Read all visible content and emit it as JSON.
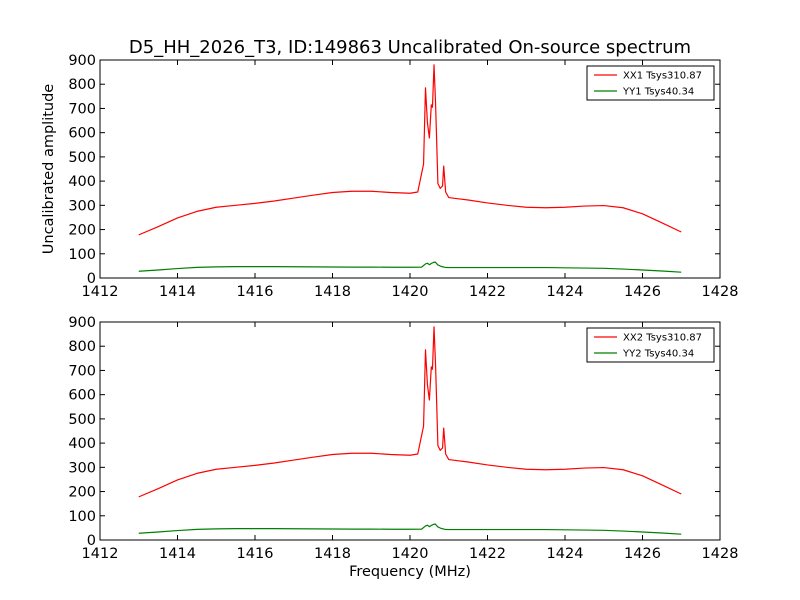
{
  "chart_data": [
    {
      "type": "line",
      "title": "D5_HH_2026_T3, ID:149863 Uncalibrated On-source spectrum",
      "xlabel": "",
      "ylabel": "Uncalibrated amplitude",
      "xlim": [
        1412,
        1428
      ],
      "ylim": [
        0,
        900
      ],
      "xticks": [
        "1412",
        "1414",
        "1416",
        "1418",
        "1420",
        "1422",
        "1424",
        "1426",
        "1428"
      ],
      "yticks": [
        "0",
        "100",
        "200",
        "300",
        "400",
        "500",
        "600",
        "700",
        "800",
        "900"
      ],
      "legend_position": "top-right",
      "series": [
        {
          "name": "XX1 Tsys310.87",
          "color": "#ff0000",
          "x": [
            1413.0,
            1413.5,
            1414.0,
            1414.5,
            1415.0,
            1415.5,
            1416.0,
            1416.5,
            1417.0,
            1417.5,
            1418.0,
            1418.5,
            1419.0,
            1419.5,
            1420.0,
            1420.2,
            1420.35,
            1420.4,
            1420.45,
            1420.5,
            1420.55,
            1420.58,
            1420.62,
            1420.66,
            1420.72,
            1420.78,
            1420.84,
            1420.87,
            1420.92,
            1421.0,
            1421.2,
            1421.5,
            1422.0,
            1422.5,
            1423.0,
            1423.5,
            1424.0,
            1424.5,
            1425.0,
            1425.5,
            1426.0,
            1426.5,
            1427.0
          ],
          "values": [
            178,
            212,
            248,
            275,
            292,
            300,
            308,
            318,
            330,
            342,
            353,
            358,
            358,
            353,
            350,
            355,
            470,
            785,
            640,
            578,
            715,
            705,
            880,
            720,
            390,
            370,
            380,
            462,
            355,
            332,
            328,
            322,
            310,
            300,
            292,
            290,
            292,
            297,
            299,
            290,
            265,
            228,
            190
          ]
        },
        {
          "name": "YY1 Tsys40.34",
          "color": "#008000",
          "x": [
            1413.0,
            1413.5,
            1414.0,
            1414.5,
            1415.0,
            1415.5,
            1416.0,
            1416.5,
            1417.0,
            1417.5,
            1418.0,
            1418.5,
            1419.0,
            1419.5,
            1420.0,
            1420.3,
            1420.4,
            1420.45,
            1420.5,
            1420.55,
            1420.6,
            1420.65,
            1420.72,
            1420.8,
            1420.9,
            1421.0,
            1421.5,
            1422.0,
            1422.5,
            1423.0,
            1423.5,
            1424.0,
            1424.5,
            1425.0,
            1425.5,
            1426.0,
            1426.5,
            1427.0
          ],
          "values": [
            28,
            33,
            39,
            44,
            46,
            47,
            47,
            47,
            46.5,
            46,
            45.5,
            45,
            45,
            44.5,
            44.5,
            45,
            58,
            61,
            55,
            60,
            64,
            66,
            54,
            48,
            44,
            43,
            43,
            43,
            43,
            43,
            43,
            42,
            41,
            40,
            37,
            33,
            29,
            24
          ]
        }
      ]
    },
    {
      "type": "line",
      "title": "",
      "xlabel": "Frequency (MHz)",
      "ylabel": "",
      "xlim": [
        1412,
        1428
      ],
      "ylim": [
        0,
        900
      ],
      "xticks": [
        "1412",
        "1414",
        "1416",
        "1418",
        "1420",
        "1422",
        "1424",
        "1426",
        "1428"
      ],
      "yticks": [
        "0",
        "100",
        "200",
        "300",
        "400",
        "500",
        "600",
        "700",
        "800",
        "900"
      ],
      "legend_position": "top-right",
      "series": [
        {
          "name": "XX2 Tsys310.87",
          "color": "#ff0000",
          "x": [
            1413.0,
            1413.5,
            1414.0,
            1414.5,
            1415.0,
            1415.5,
            1416.0,
            1416.5,
            1417.0,
            1417.5,
            1418.0,
            1418.5,
            1419.0,
            1419.5,
            1420.0,
            1420.2,
            1420.35,
            1420.4,
            1420.45,
            1420.5,
            1420.55,
            1420.58,
            1420.62,
            1420.66,
            1420.72,
            1420.78,
            1420.84,
            1420.87,
            1420.92,
            1421.0,
            1421.2,
            1421.5,
            1422.0,
            1422.5,
            1423.0,
            1423.5,
            1424.0,
            1424.5,
            1425.0,
            1425.5,
            1426.0,
            1426.5,
            1427.0
          ],
          "values": [
            178,
            212,
            248,
            275,
            292,
            300,
            308,
            318,
            330,
            342,
            353,
            358,
            358,
            353,
            350,
            355,
            470,
            785,
            640,
            578,
            715,
            705,
            880,
            720,
            390,
            370,
            380,
            462,
            355,
            332,
            328,
            322,
            310,
            300,
            292,
            290,
            292,
            297,
            299,
            290,
            265,
            228,
            190
          ]
        },
        {
          "name": "YY2 Tsys40.34",
          "color": "#008000",
          "x": [
            1413.0,
            1413.5,
            1414.0,
            1414.5,
            1415.0,
            1415.5,
            1416.0,
            1416.5,
            1417.0,
            1417.5,
            1418.0,
            1418.5,
            1419.0,
            1419.5,
            1420.0,
            1420.3,
            1420.4,
            1420.45,
            1420.5,
            1420.55,
            1420.6,
            1420.65,
            1420.72,
            1420.8,
            1420.9,
            1421.0,
            1421.5,
            1422.0,
            1422.5,
            1423.0,
            1423.5,
            1424.0,
            1424.5,
            1425.0,
            1425.5,
            1426.0,
            1426.5,
            1427.0
          ],
          "values": [
            28,
            33,
            39,
            44,
            46,
            47,
            47,
            47,
            46.5,
            46,
            45.5,
            45,
            45,
            44.5,
            44.5,
            45,
            58,
            61,
            55,
            60,
            64,
            66,
            54,
            48,
            44,
            43,
            43,
            43,
            43,
            43,
            43,
            42,
            41,
            40,
            37,
            33,
            29,
            24
          ]
        }
      ]
    }
  ]
}
